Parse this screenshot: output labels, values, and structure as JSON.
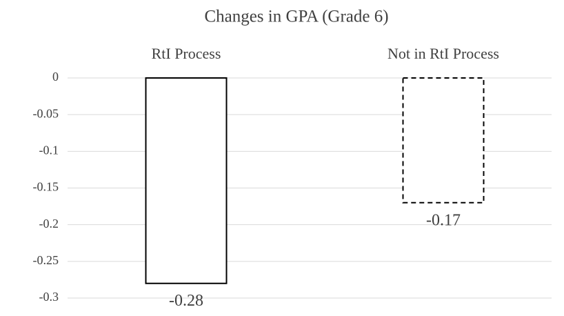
{
  "chart_data": {
    "type": "bar",
    "title": "Changes in GPA (Grade 6)",
    "categories": [
      "RtI Process",
      "Not in RtI Process"
    ],
    "values": [
      -0.28,
      -0.17
    ],
    "color": "#ffffff",
    "edge_color": "#000000",
    "edge_styles": [
      "solid",
      "dashed"
    ],
    "ylim": [
      -0.3,
      0
    ],
    "yticks": [
      0,
      -0.05,
      -0.1,
      -0.15,
      -0.2,
      -0.25,
      -0.3
    ],
    "grid": true
  }
}
